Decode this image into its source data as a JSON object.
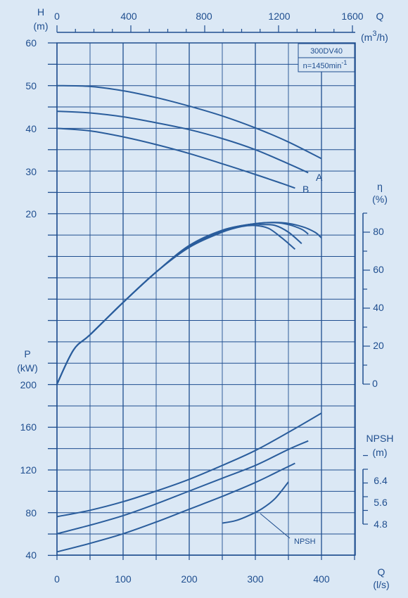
{
  "model": "300DV40",
  "speed_label": "n=1450min",
  "speed_exp": "-1",
  "colors": {
    "bg": "#dbe8f5",
    "ink": "#1f4e8f",
    "grid": "#1f4e8f",
    "curve": "#2a5d9c"
  },
  "chart_data": [
    {
      "type": "line",
      "name": "head",
      "ylabel": "H",
      "yunit": "(m)",
      "xlabel": "Q",
      "xunit_top": "(m3/h)",
      "x_top_ticks": [
        "0",
        "400",
        "800",
        "1200",
        "1600"
      ],
      "y_ticks": [
        "60",
        "50",
        "40",
        "30",
        "20"
      ],
      "xlim": [
        0,
        450
      ],
      "ylim": [
        15,
        60
      ],
      "series": [
        {
          "name": "",
          "x": [
            0,
            50,
            100,
            150,
            200,
            250,
            300,
            350,
            400
          ],
          "y": [
            50,
            49.8,
            48.8,
            47.2,
            45.2,
            42.9,
            40.1,
            36.8,
            32.9
          ]
        },
        {
          "name": "A",
          "x": [
            0,
            50,
            100,
            150,
            200,
            250,
            300,
            350,
            380
          ],
          "y": [
            44,
            43.6,
            42.7,
            41.3,
            39.7,
            37.6,
            35.0,
            31.7,
            29.6
          ]
        },
        {
          "name": "B",
          "x": [
            0,
            50,
            100,
            150,
            200,
            250,
            300,
            340,
            360
          ],
          "y": [
            40,
            39.4,
            38.0,
            36.2,
            34.1,
            31.7,
            29.2,
            27.1,
            26.0
          ]
        }
      ]
    },
    {
      "type": "line",
      "name": "efficiency",
      "ylabel": "η",
      "yunit": "(%)",
      "y_ticks": [
        "80",
        "60",
        "40",
        "20",
        "0"
      ],
      "xlim": [
        0,
        450
      ],
      "ylim": [
        0,
        90
      ],
      "series": [
        {
          "name": "",
          "x": [
            0,
            25,
            50,
            100,
            150,
            200,
            250,
            280,
            300,
            320,
            340,
            360
          ],
          "y": [
            0,
            18,
            26,
            43,
            59,
            72,
            80,
            83,
            83.5,
            82,
            77,
            71
          ]
        },
        {
          "name": "",
          "x": [
            0,
            25,
            50,
            100,
            150,
            200,
            250,
            290,
            310,
            330,
            350,
            370
          ],
          "y": [
            0,
            18,
            26,
            43,
            59,
            72.5,
            80.5,
            84,
            84,
            83.5,
            80,
            74
          ]
        },
        {
          "name": "",
          "x": [
            0,
            25,
            50,
            100,
            150,
            200,
            250,
            300,
            330,
            350,
            370,
            380
          ],
          "y": [
            0,
            18,
            26,
            43,
            59,
            72.5,
            81,
            84.5,
            85,
            84,
            81.5,
            79
          ]
        },
        {
          "name": "",
          "x": [
            0,
            25,
            50,
            100,
            150,
            200,
            250,
            300,
            340,
            370,
            390,
            400
          ],
          "y": [
            0,
            18,
            26,
            43,
            59,
            73,
            81,
            84.5,
            85,
            83,
            80,
            77
          ]
        }
      ]
    },
    {
      "type": "line",
      "name": "power",
      "ylabel": "P",
      "yunit": "(kW)",
      "xlabel": "Q",
      "xunit": "(l/s)",
      "x_ticks": [
        "0",
        "100",
        "200",
        "300",
        "400"
      ],
      "y_ticks": [
        "200",
        "160",
        "120",
        "80",
        "40"
      ],
      "xlim": [
        0,
        450
      ],
      "ylim": [
        40,
        200
      ],
      "series": [
        {
          "name": "",
          "x": [
            0,
            50,
            100,
            150,
            200,
            250,
            300,
            350,
            400
          ],
          "y": [
            76,
            82,
            90,
            100,
            111,
            124,
            138,
            155,
            173
          ]
        },
        {
          "name": "",
          "x": [
            0,
            50,
            100,
            150,
            200,
            250,
            300,
            350,
            380
          ],
          "y": [
            60,
            68,
            77,
            88,
            100,
            112,
            124,
            139,
            147
          ]
        },
        {
          "name": "",
          "x": [
            0,
            50,
            100,
            150,
            200,
            250,
            300,
            340,
            360
          ],
          "y": [
            43,
            51,
            60,
            71,
            83,
            95,
            108,
            120,
            126
          ]
        }
      ]
    },
    {
      "type": "line",
      "name": "npsh",
      "ylabel": "NPSH",
      "yunit": "(m)",
      "y_ticks": [
        "6.4",
        "5.6",
        "4.8"
      ],
      "ylim": [
        4.8,
        6.4
      ],
      "annotation": "NPSH",
      "series": [
        {
          "name": "NPSH",
          "x": [
            250,
            270,
            290,
            310,
            330,
            350
          ],
          "y": [
            4.83,
            4.9,
            5.05,
            5.25,
            5.55,
            6.03
          ]
        }
      ]
    }
  ]
}
